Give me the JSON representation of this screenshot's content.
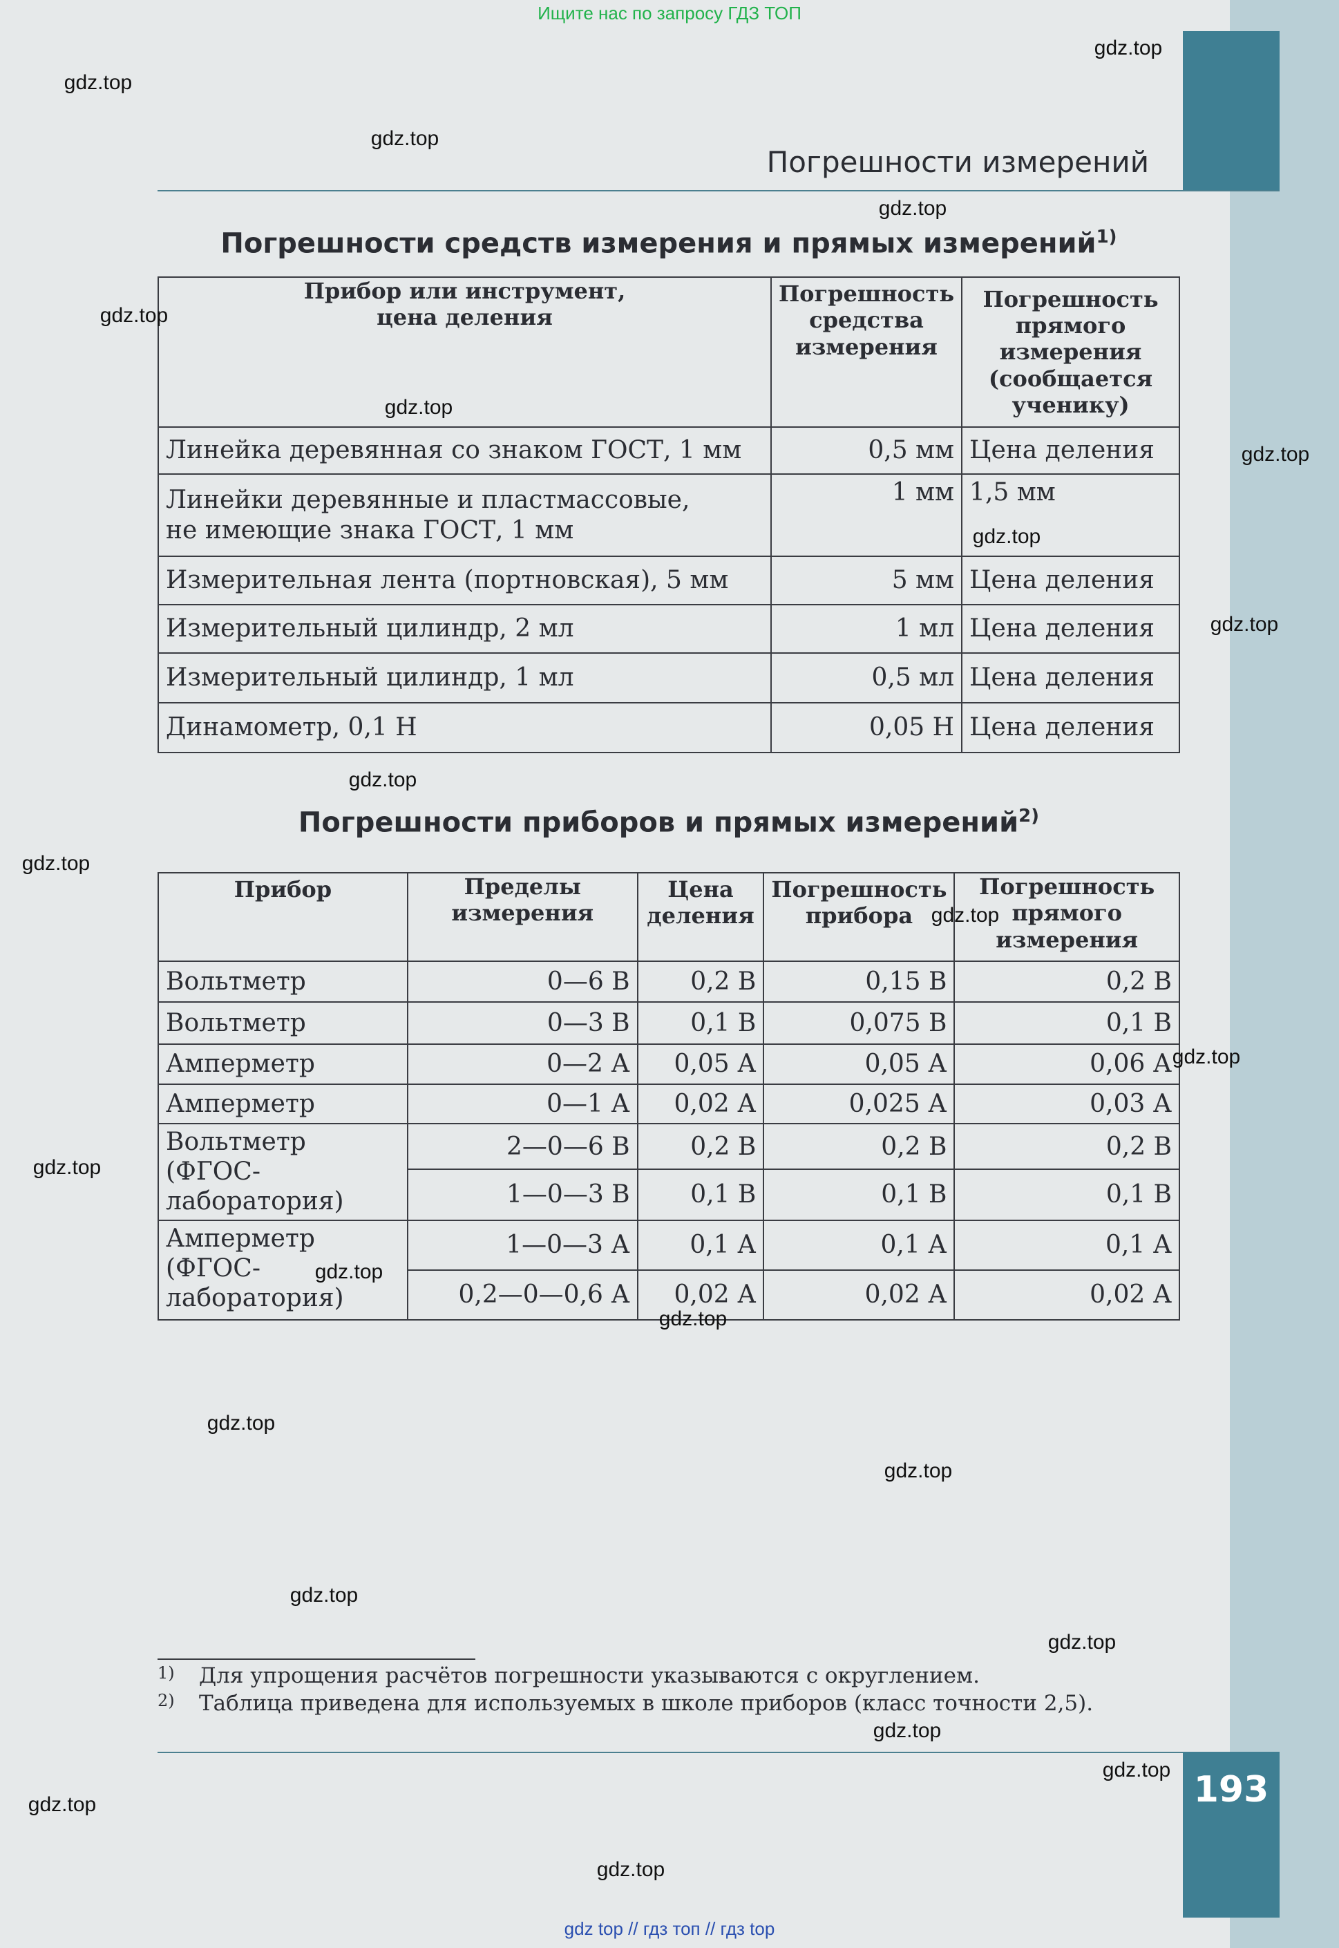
{
  "top_banner": "Ищите нас по запросу ГДЗ ТОП",
  "bottom_banner": "gdz top  //  гдз топ  //  гдз top",
  "watermark": "gdz.top",
  "header": "Погрешности измерений",
  "page_number": "193",
  "table1": {
    "title": "Погрешности средств измерения и прямых измерений",
    "title_note": "1)",
    "headers": [
      "Прибор или инструмент, цена деления",
      "Погрешность средства измерения",
      "Погрешность прямого измерения (сообщается ученику)"
    ],
    "rows": [
      [
        "Линейка деревянная со знаком ГОСТ, 1 мм",
        "0,5 мм",
        "Цена деления"
      ],
      [
        "Линейки деревянные и пластмассовые, не имеющие знака ГОСТ, 1 мм",
        "1 мм",
        "1,5 мм"
      ],
      [
        "Измерительная лента (портновская), 5 мм",
        "5 мм",
        "Цена деления"
      ],
      [
        "Измерительный цилиндр,  2 мл",
        "1 мл",
        "Цена деления"
      ],
      [
        "Измерительный цилиндр, 1 мл",
        "0,5 мл",
        "Цена деления"
      ],
      [
        "Динамометр, 0,1 Н",
        "0,05 Н",
        "Цена деления"
      ]
    ]
  },
  "table2": {
    "title": "Погрешности приборов и прямых измерений",
    "title_note": "2)",
    "headers": [
      "Прибор",
      "Пределы измерения",
      "Цена деления",
      "Погрешность прибора",
      "Погрешность прямого измерения"
    ],
    "rows": [
      [
        "Вольтметр",
        "0—6 В",
        "0,2 В",
        "0,15 В",
        "0,2 В"
      ],
      [
        "Вольтметр",
        "0—3 В",
        "0,1 В",
        "0,075 В",
        "0,1 В"
      ],
      [
        "Амперметр",
        "0—2 А",
        "0,05 А",
        "0,05 А",
        "0,06 А"
      ],
      [
        "Амперметр",
        "0—1 А",
        "0,02 А",
        "0,025 А",
        "0,03 А"
      ]
    ],
    "group_rows": [
      {
        "device": "Вольтметр (ФГОС-лаборатория)",
        "sub": [
          [
            "2—0—6 В",
            "0,2 В",
            "0,2 В",
            "0,2 В"
          ],
          [
            "1—0—3 В",
            "0,1 В",
            "0,1 В",
            "0,1 В"
          ]
        ]
      },
      {
        "device": "Амперметр (ФГОС-лаборатория)",
        "sub": [
          [
            "1—0—3 А",
            "0,1 А",
            "0,1 А",
            "0,1 А"
          ],
          [
            "0,2—0—0,6 А",
            "0,02 А",
            "0,02 А",
            "0,02 А"
          ]
        ]
      }
    ]
  },
  "footnotes": [
    {
      "mark": "1)",
      "text": "Для упрощения расчётов погрешности указываются с округлением."
    },
    {
      "mark": "2)",
      "text": "Таблица приведена для используемых в школе приборов (класс точности 2,5)."
    }
  ]
}
